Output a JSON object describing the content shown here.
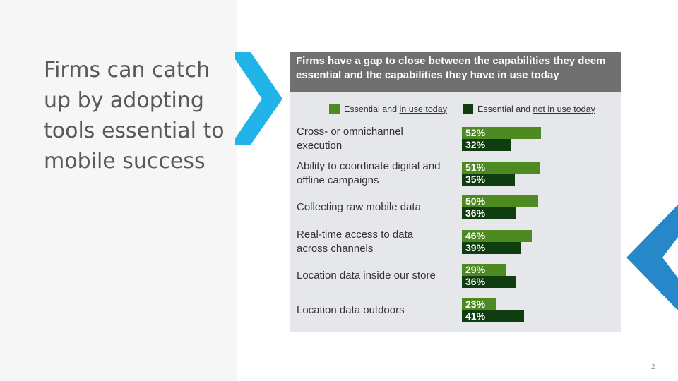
{
  "slide": {
    "title": "Firms can catch up by adopting tools essential to mobile success",
    "page_number": "2"
  },
  "colors": {
    "essential_in_use": "#4e8a22",
    "essential_not_in_use": "#0f3d0f",
    "chevron_light": "#21b4e8",
    "chevron_dark": "#2688c9",
    "header": "#707070",
    "panel": "#e5e7eb"
  },
  "chart_data": {
    "type": "bar",
    "orientation": "horizontal",
    "title": "Firms have a gap to close between the capabilities they deem essential and the capabilities they have in use today",
    "legend": {
      "in_use": {
        "prefix": "Essential and ",
        "emphasis": "in use today"
      },
      "not_in_use": {
        "prefix": "Essential and ",
        "emphasis": "not in use today"
      }
    },
    "categories": [
      "Cross- or omnichannel execution",
      "Ability to coordinate digital and offline campaigns",
      "Collecting raw mobile data",
      "Real-time access to data across channels",
      "Location data inside our store",
      "Location data outdoors"
    ],
    "series": [
      {
        "name": "Essential and in use today",
        "values": [
          52,
          51,
          50,
          46,
          29,
          23
        ],
        "labels": [
          "52%",
          "51%",
          "50%",
          "46%",
          "29%",
          "23%"
        ]
      },
      {
        "name": "Essential and not in use today",
        "values": [
          32,
          35,
          36,
          39,
          36,
          41
        ],
        "labels": [
          "32%",
          "35%",
          "36%",
          "39%",
          "36%",
          "41%"
        ]
      }
    ],
    "xlim": [
      0,
      100
    ],
    "grid": false,
    "legend_position": "top"
  }
}
